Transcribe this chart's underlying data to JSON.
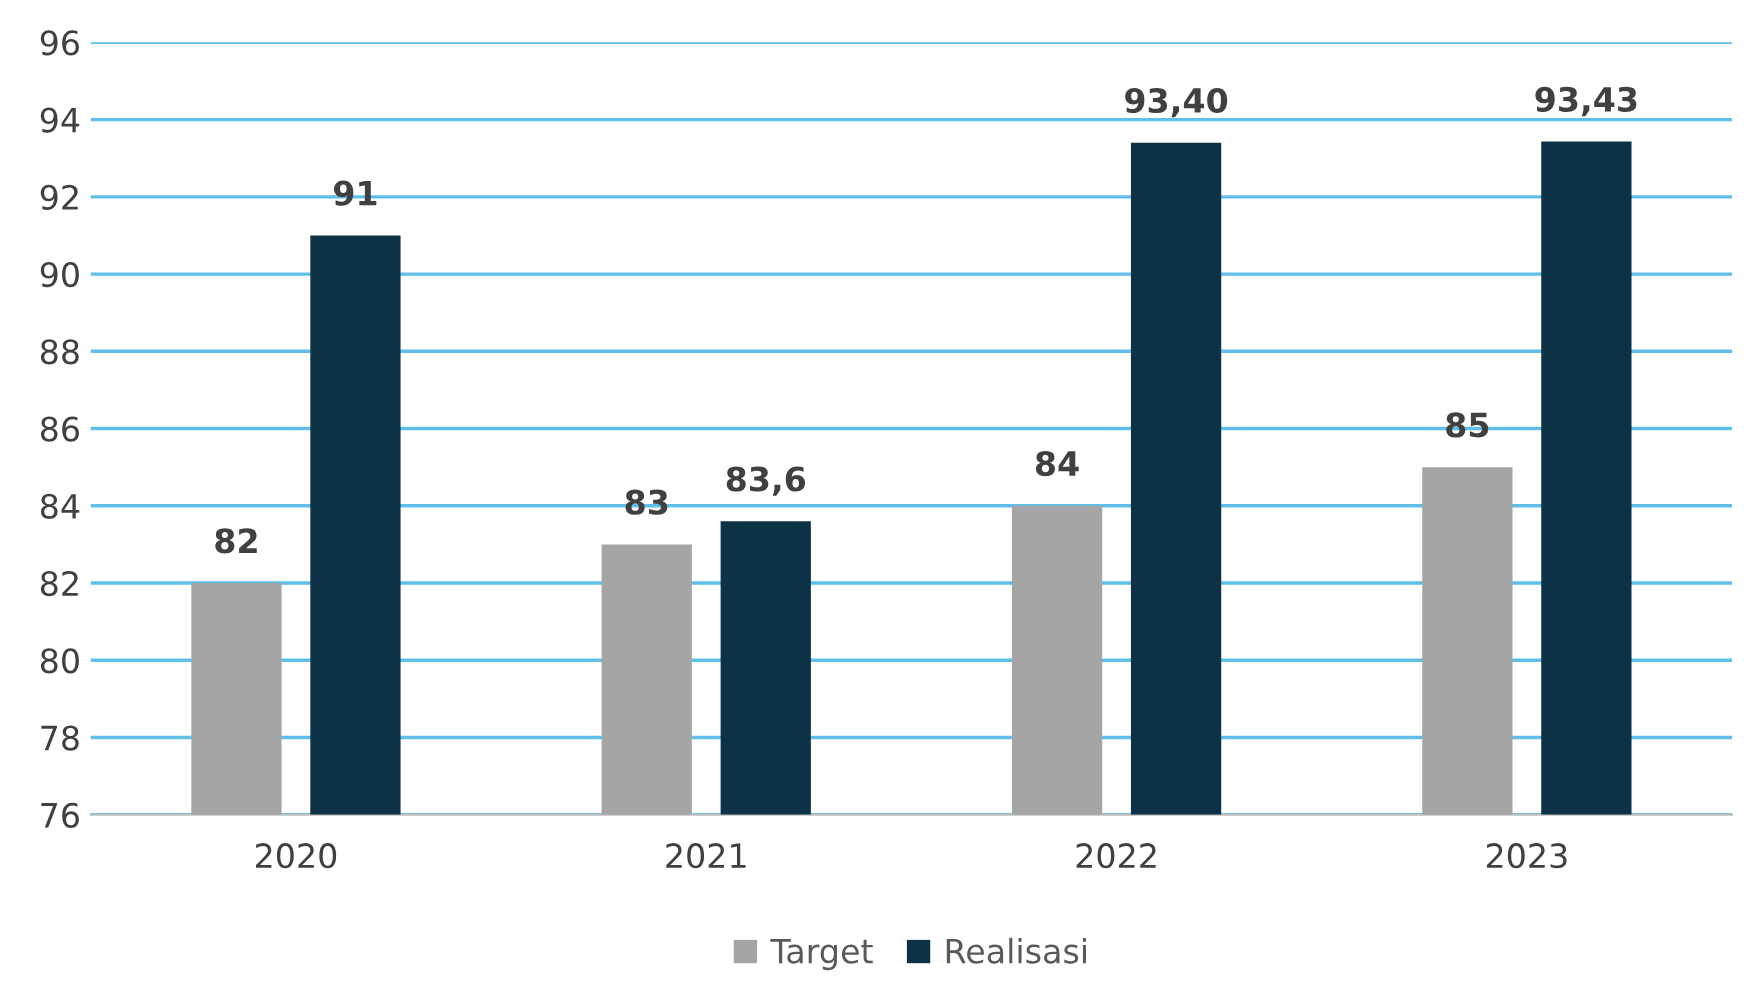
{
  "chart_data": {
    "type": "bar",
    "categories": [
      "2020",
      "2021",
      "2022",
      "2023"
    ],
    "series": [
      {
        "name": "Target",
        "color": "#a5a5a5",
        "values": [
          82,
          83,
          84,
          85
        ],
        "value_labels": [
          "82",
          "83",
          "84",
          "85"
        ]
      },
      {
        "name": "Realisasi",
        "color": "#0d3245",
        "values": [
          91,
          83.6,
          93.4,
          93.43
        ],
        "value_labels": [
          "91",
          "83,6",
          "93,40",
          "93,43"
        ]
      }
    ],
    "ylim": [
      76,
      96
    ],
    "yticks": [
      76,
      78,
      80,
      82,
      84,
      86,
      88,
      90,
      92,
      94,
      96
    ],
    "grid": "y",
    "legend": "bottom"
  }
}
